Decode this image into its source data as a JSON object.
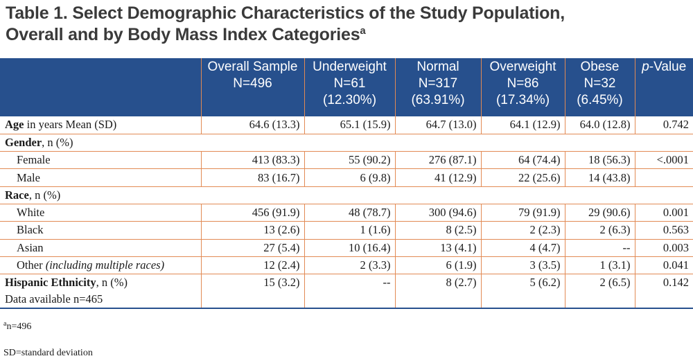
{
  "title": {
    "line1": "Table 1. Select Demographic Characteristics of the Study Population,",
    "line2": "Overall and by Body Mass Index Categories",
    "sup": "a"
  },
  "columns": [
    {
      "line1": "Overall Sample",
      "line2": "N=496",
      "line3": ""
    },
    {
      "line1": "Underweight",
      "line2": "N=61",
      "line3": "(12.30%)"
    },
    {
      "line1": "Normal",
      "line2": "N=317",
      "line3": "(63.91%)"
    },
    {
      "line1": "Overweight",
      "line2": "N=86",
      "line3": "(17.34%)"
    },
    {
      "line1": "Obese",
      "line2": "N=32",
      "line3": "(6.45%)"
    }
  ],
  "pvalue_header": {
    "italic": "p",
    "rest": "-Value"
  },
  "rows": {
    "age": {
      "bold": "Age",
      "rest": " in years Mean (SD)",
      "values": [
        "64.6 (13.3)",
        "65.1 (15.9)",
        "64.7 (13.0)",
        "64.1 (12.9)",
        "64.0 (12.8)"
      ],
      "p": "0.742"
    },
    "gender": {
      "bold": "Gender",
      "rest": ", n (%)"
    },
    "female": {
      "label": "Female",
      "values": [
        "413 (83.3)",
        "55 (90.2)",
        "276 (87.1)",
        "64 (74.4)",
        "18 (56.3)"
      ],
      "p": "<.0001"
    },
    "male": {
      "label": "Male",
      "values": [
        "83 (16.7)",
        "6 (9.8)",
        "41 (12.9)",
        "22 (25.6)",
        "14 (43.8)"
      ],
      "p": ""
    },
    "race": {
      "bold": "Race",
      "rest": ", n (%)"
    },
    "white": {
      "label": "White",
      "values": [
        "456 (91.9)",
        "48 (78.7)",
        "300 (94.6)",
        "79 (91.9)",
        "29 (90.6)"
      ],
      "p": "0.001"
    },
    "black": {
      "label": "Black",
      "values": [
        "13 (2.6)",
        "1 (1.6)",
        "8 (2.5)",
        "2 (2.3)",
        "2 (6.3)"
      ],
      "p": "0.563"
    },
    "asian": {
      "label": "Asian",
      "values": [
        "27 (5.4)",
        "10 (16.4)",
        "13 (4.1)",
        "4 (4.7)",
        "--"
      ],
      "p": "0.003"
    },
    "other": {
      "label": "Other ",
      "italic": "(including multiple races)",
      "values": [
        "12 (2.4)",
        "2 (3.3)",
        "6 (1.9)",
        "3 (3.5)",
        "1 (3.1)"
      ],
      "p": "0.041"
    },
    "hispanic": {
      "bold": "Hispanic Ethnicity",
      "rest": ", n (%)",
      "sub": "Data available n=465",
      "values": [
        "15 (3.2)",
        "--",
        "8 (2.7)",
        "5 (6.2)",
        "2 (6.5)"
      ],
      "p": "0.142"
    }
  },
  "footnotes": {
    "a_sup": "a",
    "a_text": "n=496",
    "sd": "SD=standard deviation"
  }
}
